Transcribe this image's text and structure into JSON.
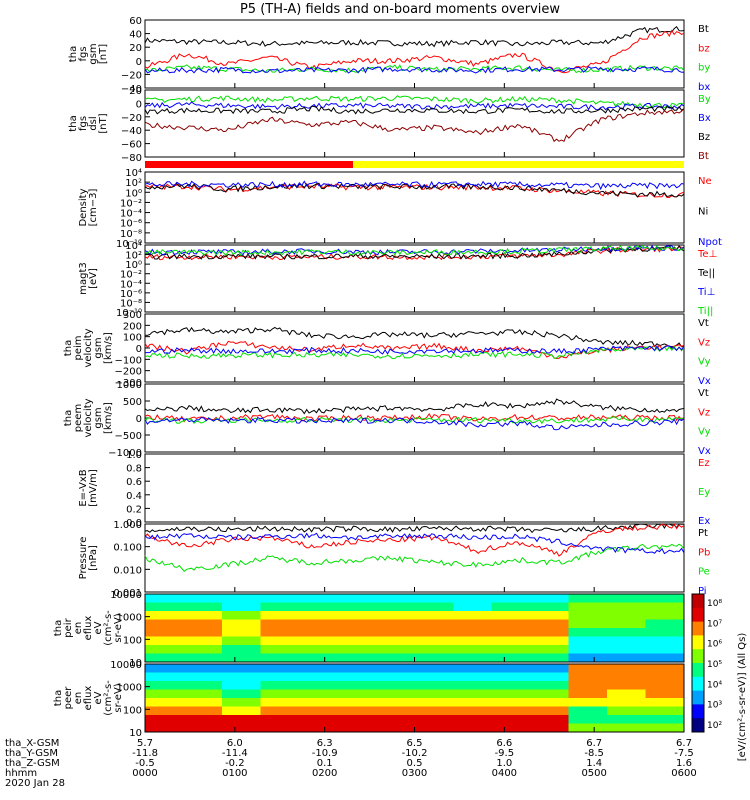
{
  "title": "P5 (TH-A) fields and on-board moments overview",
  "colors": {
    "black": "#000000",
    "red": "#ff0000",
    "green": "#00e000",
    "blue": "#0000ff",
    "darkred": "#8b0000",
    "yellow": "#ffff00",
    "grey": "#808080"
  },
  "orbit_labels": [
    "tha_X-GSM",
    "tha_Y-GSM",
    "tha_Z-GSM",
    "hhmm",
    "2020 Jan 28"
  ],
  "time_columns": [
    {
      "x": "5.7",
      "y": "-11.8",
      "z": "-0.5",
      "t": "0000"
    },
    {
      "x": "6.0",
      "y": "-11.4",
      "z": "-0.2",
      "t": "0100"
    },
    {
      "x": "6.3",
      "y": "-10.9",
      "z": "0.1",
      "t": "0200"
    },
    {
      "x": "6.5",
      "y": "-10.2",
      "z": "0.5",
      "t": "0300"
    },
    {
      "x": "6.6",
      "y": "-9.5",
      "z": "1.0",
      "t": "0400"
    },
    {
      "x": "6.7",
      "y": "-8.5",
      "z": "1.4",
      "t": "0500"
    },
    {
      "x": "6.7",
      "y": "-7.5",
      "z": "1.6",
      "t": "0600"
    }
  ],
  "colorbar_label": "[eV/(cm²-s-sr-eV)] (All Qs)",
  "colorbar_ticks": [
    "10⁸",
    "10⁷",
    "10⁶",
    "10⁵",
    "10⁴",
    "10³",
    "10²"
  ],
  "chart_data": [
    {
      "type": "line",
      "ylabel": [
        "tha",
        "fgs",
        "gsm",
        "[nT]"
      ],
      "ylim": [
        -40,
        60
      ],
      "ticks": [
        "60",
        "40",
        "20",
        "0",
        "−20",
        "−40"
      ],
      "series": [
        {
          "name": "Bt",
          "color": "#000000",
          "values": [
            30,
            28,
            27,
            25,
            26,
            27,
            26,
            25,
            28,
            24,
            27,
            26,
            45,
            47
          ]
        },
        {
          "name": "bz",
          "color": "#ff0000",
          "values": [
            -10,
            10,
            -5,
            5,
            -10,
            0,
            0,
            5,
            -5,
            10,
            -15,
            -5,
            35,
            43
          ]
        },
        {
          "name": "by",
          "color": "#00e000",
          "values": [
            -15,
            -10,
            -12,
            -15,
            -12,
            -14,
            -10,
            -13,
            -12,
            -10,
            -14,
            -13,
            -10,
            -12
          ]
        },
        {
          "name": "bx",
          "color": "#0000ff",
          "values": [
            -15,
            -14,
            -13,
            -15,
            -14,
            -14,
            -12,
            -13,
            -14,
            -12,
            -13,
            -12,
            -12,
            -13
          ]
        }
      ]
    },
    {
      "type": "line",
      "ylabel": [
        "tha",
        "fgs",
        "dsl",
        "[nT]"
      ],
      "ylim": [
        -90,
        35
      ],
      "ticks": [
        "20",
        "0",
        "−20",
        "−40",
        "−60",
        "−80"
      ],
      "series": [
        {
          "name": "By",
          "color": "#00e000",
          "values": [
            15,
            18,
            20,
            16,
            20,
            18,
            20,
            18,
            15,
            18,
            16,
            10,
            8,
            5
          ]
        },
        {
          "name": "Bx",
          "color": "#0000ff",
          "values": [
            5,
            8,
            6,
            4,
            5,
            6,
            5,
            4,
            5,
            6,
            4,
            3,
            5,
            4
          ]
        },
        {
          "name": "Bz",
          "color": "#000000",
          "values": [
            -5,
            -3,
            -4,
            -5,
            0,
            -5,
            -2,
            -3,
            -5,
            -2,
            -5,
            -3,
            0,
            -1
          ]
        },
        {
          "name": "Bt",
          "color": "#8b0000",
          "values": [
            -30,
            -35,
            -40,
            -20,
            -30,
            -25,
            -40,
            -35,
            -45,
            -30,
            -60,
            -20,
            -8,
            -4
          ]
        }
      ]
    },
    {
      "type": "line",
      "ylabel": [
        "Density",
        "[cm−3]"
      ],
      "ylim": [
        -10,
        4
      ],
      "ticks": [
        "10⁴",
        "10²",
        "10⁰",
        "10⁻²",
        "10⁻⁴",
        "10⁻⁶",
        "10⁻⁸",
        "10⁻¹⁰"
      ],
      "series": [
        {
          "name": "Ne",
          "color": "#ff0000",
          "values": [
            1,
            1.2,
            0.5,
            1,
            1.2,
            1,
            1,
            1,
            1,
            0.8,
            0.3,
            -0.2,
            -0.5,
            -0.5
          ]
        },
        {
          "name": "Ni",
          "color": "#000000",
          "values": [
            1.1,
            1.3,
            0.6,
            1.1,
            1.3,
            1.1,
            1.1,
            1.1,
            1.1,
            0.9,
            0.4,
            -0.1,
            -0.4,
            -0.4
          ]
        },
        {
          "name": "Npot",
          "color": "#0000ff",
          "values": [
            1.5,
            1.6,
            1.5,
            1.5,
            1.6,
            1.5,
            1.5,
            1.5,
            1.6,
            1.5,
            1.4,
            1.2,
            1.3,
            1.3
          ]
        }
      ]
    },
    {
      "type": "line",
      "ylabel": [
        "magt3",
        "[eV]"
      ],
      "ylim": [
        -10,
        4
      ],
      "ticks": [
        "10⁴",
        "10²",
        "10⁰",
        "10⁻²",
        "10⁻⁴",
        "10⁻⁶",
        "10⁻⁸",
        "10⁻¹⁰"
      ],
      "series": [
        {
          "name": "Te⊥",
          "color": "#ff0000",
          "values": [
            1.5,
            1.5,
            1.6,
            1.5,
            1.5,
            1.6,
            1.5,
            1.5,
            1.6,
            1.7,
            2,
            2.8,
            3.1,
            3.2
          ]
        },
        {
          "name": "Te||",
          "color": "#000000",
          "values": [
            1.6,
            1.6,
            1.7,
            1.6,
            1.6,
            1.7,
            1.6,
            1.6,
            1.7,
            1.8,
            2.1,
            2.9,
            3.2,
            3.3
          ]
        },
        {
          "name": "Ti⊥",
          "color": "#0000ff",
          "values": [
            2.5,
            2.6,
            2.5,
            2.6,
            2.7,
            2.6,
            2.5,
            2.6,
            2.7,
            2.8,
            3,
            3.3,
            3.4,
            3.4
          ]
        },
        {
          "name": "Ti||",
          "color": "#00e000",
          "values": [
            2.4,
            2.5,
            2.4,
            2.5,
            2.6,
            2.5,
            2.4,
            2.5,
            2.6,
            2.7,
            2.9,
            3.2,
            3.3,
            3.3
          ]
        }
      ]
    },
    {
      "type": "line",
      "ylabel": [
        "tha",
        "peim",
        "velocity",
        "gsm",
        "[km/s]"
      ],
      "ylim": [
        -300,
        300
      ],
      "ticks": [
        "300",
        "200",
        "100",
        "0",
        "−100",
        "−200",
        "−300"
      ],
      "series": [
        {
          "name": "Vt",
          "color": "#000000",
          "values": [
            130,
            160,
            140,
            170,
            110,
            100,
            120,
            110,
            130,
            140,
            110,
            50,
            40,
            30
          ]
        },
        {
          "name": "Vz",
          "color": "#ff0000",
          "values": [
            20,
            -30,
            50,
            10,
            -20,
            30,
            -10,
            20,
            -20,
            0,
            -80,
            -20,
            10,
            5
          ]
        },
        {
          "name": "Vy",
          "color": "#00e000",
          "values": [
            -60,
            -70,
            -65,
            -60,
            -65,
            -60,
            -70,
            -65,
            -60,
            -55,
            -70,
            -20,
            -10,
            -10
          ]
        },
        {
          "name": "Vx",
          "color": "#0000ff",
          "values": [
            -30,
            -20,
            -25,
            -30,
            -20,
            -25,
            -30,
            -20,
            -25,
            -20,
            -30,
            -10,
            0,
            0
          ]
        }
      ]
    },
    {
      "type": "line",
      "ylabel": [
        "tha",
        "peem",
        "velocity",
        "gsm",
        "[km/s]"
      ],
      "ylim": [
        -1000,
        1000
      ],
      "ticks": [
        "1000",
        "500",
        "0",
        "−500",
        "−1000"
      ],
      "series": [
        {
          "name": "Vt",
          "color": "#000000",
          "values": [
            200,
            300,
            200,
            250,
            200,
            250,
            300,
            250,
            400,
            350,
            500,
            300,
            250,
            200
          ]
        },
        {
          "name": "Vz",
          "color": "#ff0000",
          "values": [
            50,
            -50,
            0,
            50,
            -30,
            20,
            0,
            50,
            -50,
            30,
            0,
            20,
            10,
            0
          ]
        },
        {
          "name": "Vy",
          "color": "#00e000",
          "values": [
            -50,
            -80,
            -60,
            -70,
            -50,
            -60,
            -70,
            -50,
            -60,
            -70,
            -80,
            -40,
            -30,
            -20
          ]
        },
        {
          "name": "Vx",
          "color": "#0000ff",
          "values": [
            -100,
            -50,
            -80,
            -60,
            -100,
            -80,
            -60,
            -100,
            -200,
            -150,
            -300,
            -200,
            -150,
            -100
          ]
        }
      ]
    },
    {
      "type": "line",
      "ylabel": [
        "E=-VxB",
        "[mV/m]"
      ],
      "ylim": [
        0,
        1
      ],
      "ticks": [
        "1.0",
        "0.8",
        "0.6",
        "0.4",
        "0.2",
        "0.0"
      ],
      "series": [
        {
          "name": "Ez",
          "color": "#ff0000",
          "values": []
        },
        {
          "name": "Ey",
          "color": "#00e000",
          "values": []
        },
        {
          "name": "Ex",
          "color": "#0000ff",
          "values": []
        }
      ]
    },
    {
      "type": "line",
      "ylabel": [
        "Pressure",
        "[nPa]"
      ],
      "ylim": [
        -3,
        0
      ],
      "ticks": [
        "1.000",
        "0.100",
        "0.010",
        "0.001"
      ],
      "series": [
        {
          "name": "Pt",
          "color": "#000000",
          "values": [
            -0.3,
            -0.2,
            -0.25,
            -0.2,
            -0.25,
            -0.2,
            -0.25,
            -0.2,
            -0.2,
            -0.25,
            -0.3,
            -0.2,
            -0.1,
            -0.05
          ]
        },
        {
          "name": "Pb",
          "color": "#ff0000",
          "values": [
            -0.5,
            -1,
            -0.7,
            -0.6,
            -1,
            -0.8,
            -0.7,
            -0.6,
            -1.2,
            -0.8,
            -1.3,
            -0.3,
            -0.15,
            -0.1
          ]
        },
        {
          "name": "Pe",
          "color": "#00e000",
          "values": [
            -1.5,
            -2,
            -1.8,
            -1.5,
            -1.7,
            -1.6,
            -1.5,
            -1.7,
            -1.8,
            -1.6,
            -1.7,
            -1.2,
            -1,
            -1
          ]
        },
        {
          "name": "Pi",
          "color": "#0000ff",
          "values": [
            -0.6,
            -0.5,
            -0.6,
            -0.55,
            -0.5,
            -0.6,
            -0.55,
            -0.5,
            -0.6,
            -0.55,
            -0.8,
            -1.1,
            -1.2,
            -1.2
          ]
        }
      ]
    },
    {
      "type": "heatmap",
      "ylabel": [
        "tha",
        "peir",
        "en",
        "eflux",
        "eV",
        "(cm²-s-",
        "sr-eV)"
      ],
      "ticks": [
        "10000",
        "1000",
        "100",
        "10"
      ],
      "rows": [
        [
          3,
          3,
          3,
          3,
          3,
          3,
          3,
          3,
          3,
          3,
          3,
          4,
          4,
          4
        ],
        [
          4,
          4,
          3,
          4,
          4,
          4,
          4,
          4,
          3,
          4,
          4,
          5,
          5,
          5
        ],
        [
          6,
          6,
          5,
          6,
          6,
          6,
          6,
          6,
          6,
          6,
          6,
          5,
          5,
          5
        ],
        [
          7,
          7,
          6,
          7,
          7,
          7,
          7,
          7,
          7,
          7,
          7,
          5,
          5,
          4
        ],
        [
          7,
          7,
          6,
          7,
          7,
          7,
          7,
          7,
          7,
          7,
          7,
          4,
          4,
          4
        ],
        [
          6,
          6,
          5,
          6,
          6,
          6,
          6,
          6,
          6,
          6,
          6,
          3,
          3,
          3
        ],
        [
          5,
          5,
          4,
          5,
          5,
          5,
          5,
          5,
          5,
          5,
          5,
          3,
          3,
          3
        ],
        [
          4,
          4,
          4,
          4,
          4,
          4,
          4,
          4,
          4,
          4,
          4,
          2,
          2,
          2
        ]
      ]
    },
    {
      "type": "heatmap",
      "ylabel": [
        "tha",
        "peer",
        "en",
        "eflux",
        "eV",
        "(cm²-s-",
        "sr-eV)"
      ],
      "ticks": [
        "10000",
        "1000",
        "100",
        "10"
      ],
      "rows": [
        [
          2,
          2,
          2,
          2,
          2,
          2,
          2,
          2,
          2,
          2,
          2,
          7,
          7,
          7
        ],
        [
          3,
          3,
          3,
          3,
          3,
          3,
          3,
          3,
          3,
          3,
          3,
          7,
          7,
          7
        ],
        [
          4,
          4,
          3,
          4,
          4,
          4,
          4,
          4,
          4,
          4,
          4,
          7,
          7,
          7
        ],
        [
          5,
          5,
          4,
          5,
          5,
          5,
          5,
          5,
          5,
          5,
          5,
          7,
          6,
          7
        ],
        [
          6,
          6,
          5,
          6,
          6,
          6,
          6,
          6,
          6,
          6,
          6,
          6,
          6,
          6
        ],
        [
          7,
          7,
          6,
          7,
          7,
          7,
          7,
          7,
          7,
          7,
          7,
          4,
          5,
          5
        ],
        [
          8,
          8,
          8,
          8,
          8,
          8,
          8,
          8,
          8,
          8,
          8,
          4,
          4,
          4
        ],
        [
          8,
          8,
          8,
          8,
          8,
          8,
          8,
          8,
          8,
          8,
          8,
          5,
          5,
          5
        ]
      ]
    }
  ]
}
